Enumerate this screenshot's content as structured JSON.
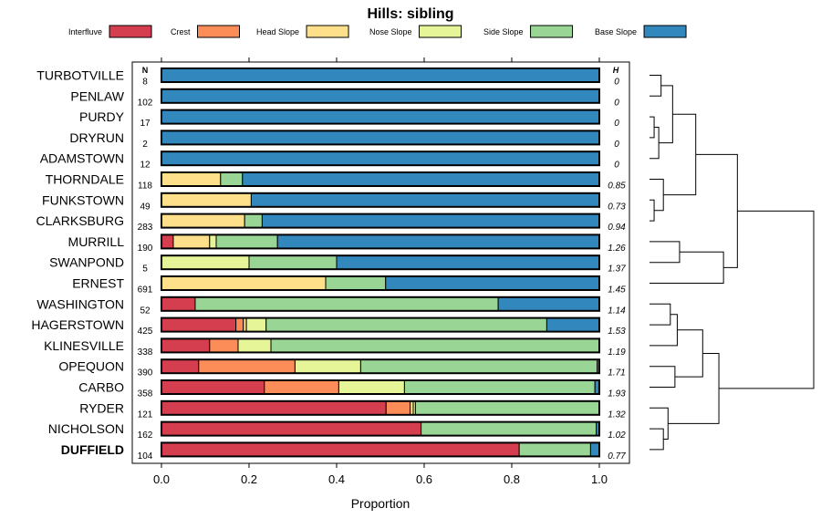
{
  "chart_data": {
    "type": "bar",
    "stacked": true,
    "orientation": "horizontal",
    "title": "Hills: sibling",
    "xlabel": "Proportion",
    "xlim": [
      0,
      1
    ],
    "xticks": [
      "0.0",
      "0.2",
      "0.4",
      "0.6",
      "0.8",
      "1.0"
    ],
    "n_header": "N",
    "h_header": "H",
    "legend_position": "top",
    "highlighted_category": "DUFFIELD",
    "series": [
      {
        "name": "Interfluve",
        "color": "#d53e4f"
      },
      {
        "name": "Crest",
        "color": "#fc8d59"
      },
      {
        "name": "Head Slope",
        "color": "#fee08b"
      },
      {
        "name": "Nose Slope",
        "color": "#e6f598"
      },
      {
        "name": "Side Slope",
        "color": "#99d594"
      },
      {
        "name": "Base Slope",
        "color": "#3288bd"
      }
    ],
    "categories": [
      {
        "name": "TURBOTVILLE",
        "n": "8",
        "h": "0",
        "values": [
          0,
          0,
          0,
          0,
          0,
          1.0
        ]
      },
      {
        "name": "PENLAW",
        "n": "102",
        "h": "0",
        "values": [
          0,
          0,
          0,
          0,
          0,
          1.0
        ]
      },
      {
        "name": "PURDY",
        "n": "17",
        "h": "0",
        "values": [
          0,
          0,
          0,
          0,
          0,
          1.0
        ]
      },
      {
        "name": "DRYRUN",
        "n": "2",
        "h": "0",
        "values": [
          0,
          0,
          0,
          0,
          0,
          1.0
        ]
      },
      {
        "name": "ADAMSTOWN",
        "n": "12",
        "h": "0",
        "values": [
          0,
          0,
          0,
          0,
          0,
          1.0
        ]
      },
      {
        "name": "THORNDALE",
        "n": "118",
        "h": "0.85",
        "values": [
          0,
          0,
          0.135,
          0,
          0.05,
          0.815
        ]
      },
      {
        "name": "FUNKSTOWN",
        "n": "49",
        "h": "0.73",
        "values": [
          0,
          0,
          0.205,
          0,
          0,
          0.795
        ]
      },
      {
        "name": "CLARKSBURG",
        "n": "283",
        "h": "0.94",
        "values": [
          0,
          0,
          0.19,
          0,
          0.04,
          0.77
        ]
      },
      {
        "name": "MURRILL",
        "n": "190",
        "h": "1.26",
        "values": [
          0.027,
          0,
          0.083,
          0.015,
          0.14,
          0.735
        ]
      },
      {
        "name": "SWANPOND",
        "n": "5",
        "h": "1.37",
        "values": [
          0,
          0,
          0,
          0.2,
          0.2,
          0.6
        ]
      },
      {
        "name": "ERNEST",
        "n": "691",
        "h": "1.45",
        "values": [
          0,
          0,
          0.375,
          0,
          0.137,
          0.488
        ]
      },
      {
        "name": "WASHINGTON",
        "n": "52",
        "h": "1.14",
        "values": [
          0.077,
          0,
          0,
          0,
          0.692,
          0.231
        ]
      },
      {
        "name": "HAGERSTOWN",
        "n": "425",
        "h": "1.53",
        "values": [
          0.17,
          0.017,
          0.007,
          0.045,
          0.641,
          0.12
        ]
      },
      {
        "name": "KLINESVILLE",
        "n": "338",
        "h": "1.19",
        "values": [
          0.11,
          0.065,
          0,
          0.075,
          0.75,
          0
        ]
      },
      {
        "name": "OPEQUON",
        "n": "390",
        "h": "1.71",
        "values": [
          0.085,
          0.22,
          0,
          0.15,
          0.54,
          0.005
        ]
      },
      {
        "name": "CARBO",
        "n": "358",
        "h": "1.93",
        "values": [
          0.235,
          0.17,
          0,
          0.15,
          0.435,
          0.01
        ]
      },
      {
        "name": "RYDER",
        "n": "121",
        "h": "1.32",
        "values": [
          0.513,
          0.055,
          0.007,
          0.005,
          0.42,
          0
        ]
      },
      {
        "name": "NICHOLSON",
        "n": "162",
        "h": "1.02",
        "values": [
          0.593,
          0,
          0,
          0,
          0.4,
          0.007
        ]
      },
      {
        "name": "DUFFIELD",
        "n": "104",
        "h": "0.77",
        "values": [
          0.817,
          0,
          0,
          0,
          0.163,
          0.02
        ]
      }
    ],
    "dendrogram": {
      "type": "dendrogram",
      "orientation": "right",
      "leaf_order": [
        "TURBOTVILLE",
        "PENLAW",
        "PURDY",
        "DRYRUN",
        "ADAMSTOWN",
        "THORNDALE",
        "FUNKSTOWN",
        "CLARKSBURG",
        "MURRILL",
        "SWANPOND",
        "ERNEST",
        "WASHINGTON",
        "HAGERSTOWN",
        "KLINESVILLE",
        "OPEQUON",
        "CARBO",
        "RYDER",
        "NICHOLSON",
        "DUFFIELD"
      ],
      "merges": [
        {
          "left": "PURDY",
          "right": "DRYRUN",
          "height": 0.02
        },
        {
          "left": "TURBOTVILLE",
          "right": "PENLAW",
          "height": 0.05
        },
        {
          "left": "m1",
          "right": "ADAMSTOWN",
          "height": 0.04
        },
        {
          "left": "m2",
          "right": "m3",
          "height": 0.1
        },
        {
          "left": "FUNKSTOWN",
          "right": "CLARKSBURG",
          "height": 0.02
        },
        {
          "left": "THORNDALE",
          "right": "m5",
          "height": 0.06
        },
        {
          "left": "m4",
          "right": "m6",
          "height": 0.2
        },
        {
          "left": "MURRILL",
          "right": "SWANPOND",
          "height": 0.13
        },
        {
          "left": "m8",
          "right": "ERNEST",
          "height": 0.32
        },
        {
          "left": "m7",
          "right": "m9",
          "height": 0.38
        },
        {
          "left": "WASHINGTON",
          "right": "HAGERSTOWN",
          "height": 0.09
        },
        {
          "left": "m11",
          "right": "KLINESVILLE",
          "height": 0.12
        },
        {
          "left": "OPEQUON",
          "right": "CARBO",
          "height": 0.11
        },
        {
          "left": "m12",
          "right": "m13",
          "height": 0.23
        },
        {
          "left": "NICHOLSON",
          "right": "DUFFIELD",
          "height": 0.06
        },
        {
          "left": "RYDER",
          "right": "m15",
          "height": 0.08
        },
        {
          "left": "m14",
          "right": "m16",
          "height": 0.3
        },
        {
          "left": "m10",
          "right": "m17",
          "height": 0.71
        }
      ]
    }
  }
}
